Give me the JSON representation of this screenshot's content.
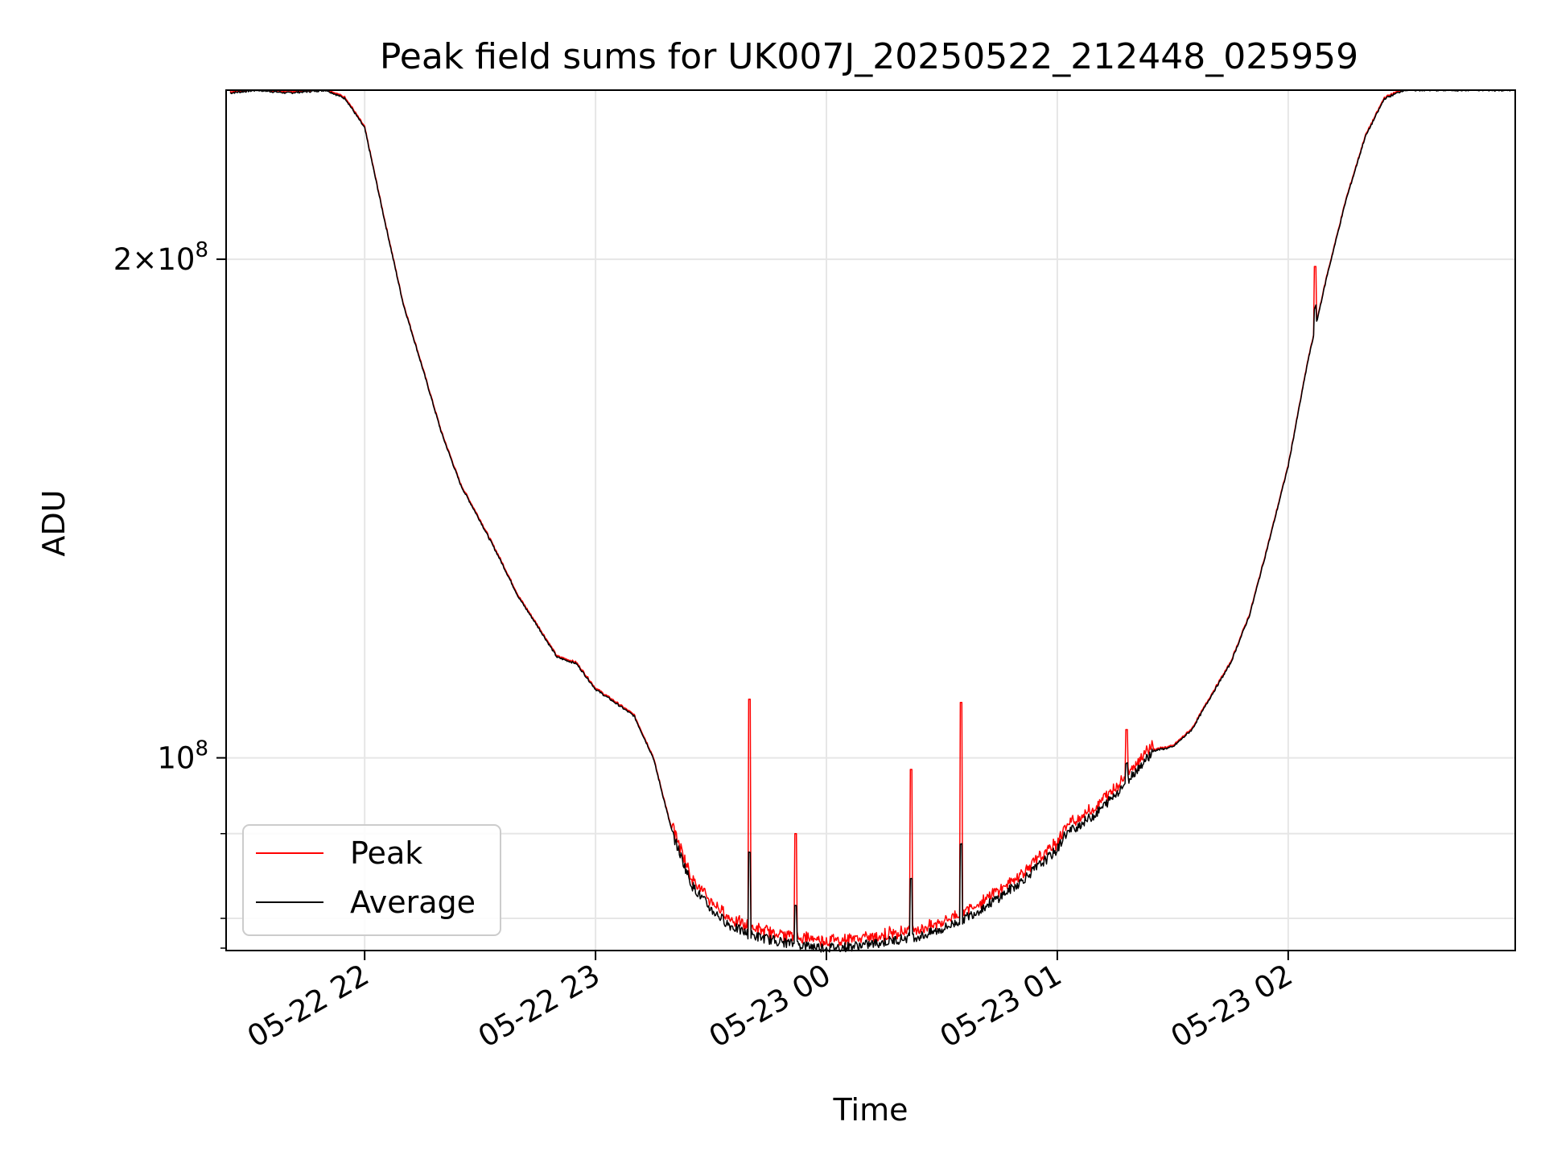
{
  "chart_data": {
    "type": "line",
    "title": "Peak field sums for UK007J_20250522_212448_025959",
    "xlabel": "Time",
    "ylabel": "ADU",
    "x_range": [
      "2025-05-22 21:24",
      "2025-05-23 02:59"
    ],
    "y_scale": "log",
    "ylim": [
      76500000,
      253000000
    ],
    "x_ticks": [
      {
        "value": "2025-05-22 22:00",
        "label": "05-22 22"
      },
      {
        "value": "2025-05-22 23:00",
        "label": "05-22 23"
      },
      {
        "value": "2025-05-23 00:00",
        "label": "05-23 00"
      },
      {
        "value": "2025-05-23 01:00",
        "label": "05-23 01"
      },
      {
        "value": "2025-05-23 02:00",
        "label": "05-23 02"
      }
    ],
    "y_major_ticks": [
      {
        "value": 200000000,
        "mantissa": "2",
        "times": "×",
        "base": "10",
        "exp": "8"
      },
      {
        "value": 100000000,
        "mantissa": "",
        "times": "",
        "base": "10",
        "exp": "8"
      }
    ],
    "y_minor_ticks": [
      80000000,
      90000000
    ],
    "grid": true,
    "legend": {
      "position": "lower-left",
      "entries": [
        "Peak",
        "Average"
      ]
    },
    "colors": {
      "Peak": "#ff0000",
      "Average": "#000000"
    },
    "series": [
      {
        "name": "Average",
        "x": [
          "2025-05-22 21:25",
          "2025-05-22 21:32",
          "2025-05-22 21:40",
          "2025-05-22 21:50",
          "2025-05-22 21:55",
          "2025-05-22 22:00",
          "2025-05-22 22:05",
          "2025-05-22 22:10",
          "2025-05-22 22:15",
          "2025-05-22 22:20",
          "2025-05-22 22:25",
          "2025-05-22 22:30",
          "2025-05-22 22:35",
          "2025-05-22 22:40",
          "2025-05-22 22:45",
          "2025-05-22 22:50",
          "2025-05-22 22:55",
          "2025-05-22 23:00",
          "2025-05-22 23:05",
          "2025-05-22 23:10",
          "2025-05-22 23:15",
          "2025-05-22 23:20",
          "2025-05-22 23:25",
          "2025-05-22 23:30",
          "2025-05-22 23:35",
          "2025-05-22 23:40",
          "2025-05-22 23:45",
          "2025-05-22 23:50",
          "2025-05-22 23:55",
          "2025-05-23 00:00",
          "2025-05-23 00:05",
          "2025-05-23 00:10",
          "2025-05-23 00:15",
          "2025-05-23 00:20",
          "2025-05-23 00:25",
          "2025-05-23 00:30",
          "2025-05-23 00:35",
          "2025-05-23 00:40",
          "2025-05-23 00:45",
          "2025-05-23 00:50",
          "2025-05-23 00:55",
          "2025-05-23 01:00",
          "2025-05-23 01:02",
          "2025-05-23 01:10",
          "2025-05-23 01:15",
          "2025-05-23 01:20",
          "2025-05-23 01:25",
          "2025-05-23 01:30",
          "2025-05-23 01:35",
          "2025-05-23 01:40",
          "2025-05-23 01:45",
          "2025-05-23 01:50",
          "2025-05-23 01:55",
          "2025-05-23 02:00",
          "2025-05-23 02:05",
          "2025-05-23 02:10",
          "2025-05-23 02:15",
          "2025-05-23 02:20",
          "2025-05-23 02:25",
          "2025-05-23 02:30",
          "2025-05-23 02:40",
          "2025-05-23 02:50",
          "2025-05-23 02:59"
        ],
        "y": [
          252000000,
          253000000,
          252000000,
          253000000,
          250000000,
          240000000,
          212000000,
          188000000,
          172000000,
          157000000,
          146000000,
          139000000,
          132000000,
          125000000,
          120000000,
          115000000,
          114000000,
          110000000,
          108000000,
          106000000,
          100000000,
          90000000,
          83800000,
          81000000,
          79200000,
          78200000,
          77700000,
          77300000,
          77000000,
          76800000,
          76900000,
          77100000,
          77400000,
          77800000,
          78100000,
          78800000,
          79800000,
          81000000,
          82400000,
          84000000,
          86000000,
          88000000,
          89900000,
          92500000,
          95000000,
          98000000,
          101000000,
          101500000,
          104000000,
          109000000,
          114000000,
          122000000,
          135000000,
          150000000,
          173000000,
          195000000,
          217000000,
          237000000,
          250000000,
          253000000,
          253000000,
          253000000,
          253000000
        ]
      },
      {
        "name": "Peak",
        "x": [
          "2025-05-22 23:40",
          "2025-05-22 23:52",
          "2025-05-23 00:22",
          "2025-05-23 00:35",
          "2025-05-23 01:18",
          "2025-05-23 02:07"
        ],
        "y": [
          108500000,
          90000000,
          98400000,
          108000000,
          104000000,
          198000000
        ],
        "note_series": "follows Average closely with narrow spikes at listed times"
      }
    ]
  }
}
